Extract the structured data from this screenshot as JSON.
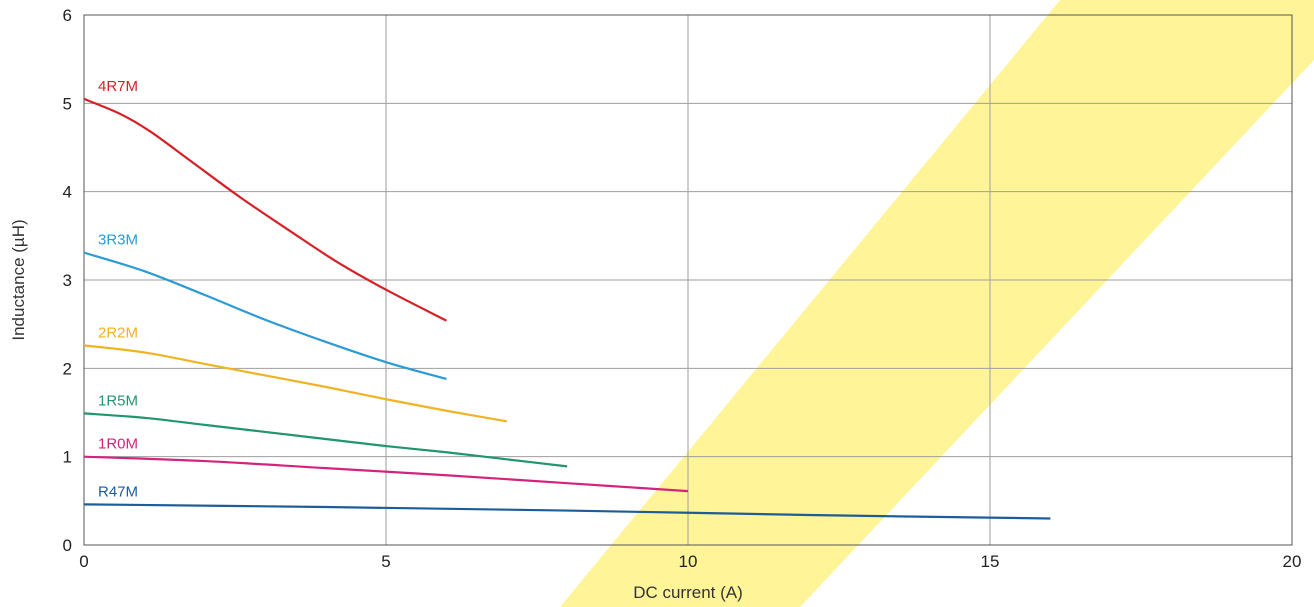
{
  "chart_data": {
    "type": "line",
    "title": "",
    "xlabel": "DC current (A)",
    "ylabel": "Inductance (µH)",
    "xlim": [
      0,
      20
    ],
    "ylim": [
      0,
      6
    ],
    "x_ticks": [
      "0",
      "5",
      "10",
      "15",
      "20"
    ],
    "y_ticks": [
      "0",
      "1",
      "2",
      "3",
      "4",
      "5",
      "6"
    ],
    "grid": true,
    "series": [
      {
        "name": "4R7M",
        "color": "#d71f26",
        "points": [
          [
            0,
            5.05
          ],
          [
            0.6,
            4.88
          ],
          [
            1.1,
            4.68
          ],
          [
            1.8,
            4.33
          ],
          [
            2.6,
            3.93
          ],
          [
            3.4,
            3.56
          ],
          [
            4.2,
            3.2
          ],
          [
            5.0,
            2.89
          ],
          [
            6.0,
            2.54
          ]
        ]
      },
      {
        "name": "3R3M",
        "color": "#2b9bd6",
        "points": [
          [
            0,
            3.31
          ],
          [
            1.0,
            3.1
          ],
          [
            2.0,
            2.83
          ],
          [
            3.0,
            2.55
          ],
          [
            4.0,
            2.3
          ],
          [
            5.0,
            2.07
          ],
          [
            6.0,
            1.88
          ]
        ]
      },
      {
        "name": "2R2M",
        "color": "#f0b323",
        "points": [
          [
            0,
            2.26
          ],
          [
            1.0,
            2.18
          ],
          [
            2.0,
            2.05
          ],
          [
            3.0,
            1.92
          ],
          [
            4.0,
            1.79
          ],
          [
            5.0,
            1.65
          ],
          [
            6.0,
            1.52
          ],
          [
            7.0,
            1.4
          ]
        ]
      },
      {
        "name": "1R5M",
        "color": "#21956f",
        "points": [
          [
            0,
            1.49
          ],
          [
            1.0,
            1.44
          ],
          [
            2.0,
            1.36
          ],
          [
            3.0,
            1.28
          ],
          [
            4.0,
            1.2
          ],
          [
            5.0,
            1.12
          ],
          [
            6.0,
            1.05
          ],
          [
            7.0,
            0.97
          ],
          [
            8.0,
            0.89
          ]
        ]
      },
      {
        "name": "1R0M",
        "color": "#d4237c",
        "points": [
          [
            0,
            1.0
          ],
          [
            2.0,
            0.95
          ],
          [
            4.0,
            0.87
          ],
          [
            6.0,
            0.79
          ],
          [
            8.0,
            0.7
          ],
          [
            10.0,
            0.61
          ]
        ]
      },
      {
        "name": "R47M",
        "color": "#1c5d99",
        "points": [
          [
            0,
            0.46
          ],
          [
            4.0,
            0.43
          ],
          [
            8.0,
            0.39
          ],
          [
            12.0,
            0.34
          ],
          [
            16.0,
            0.3
          ]
        ]
      }
    ]
  }
}
